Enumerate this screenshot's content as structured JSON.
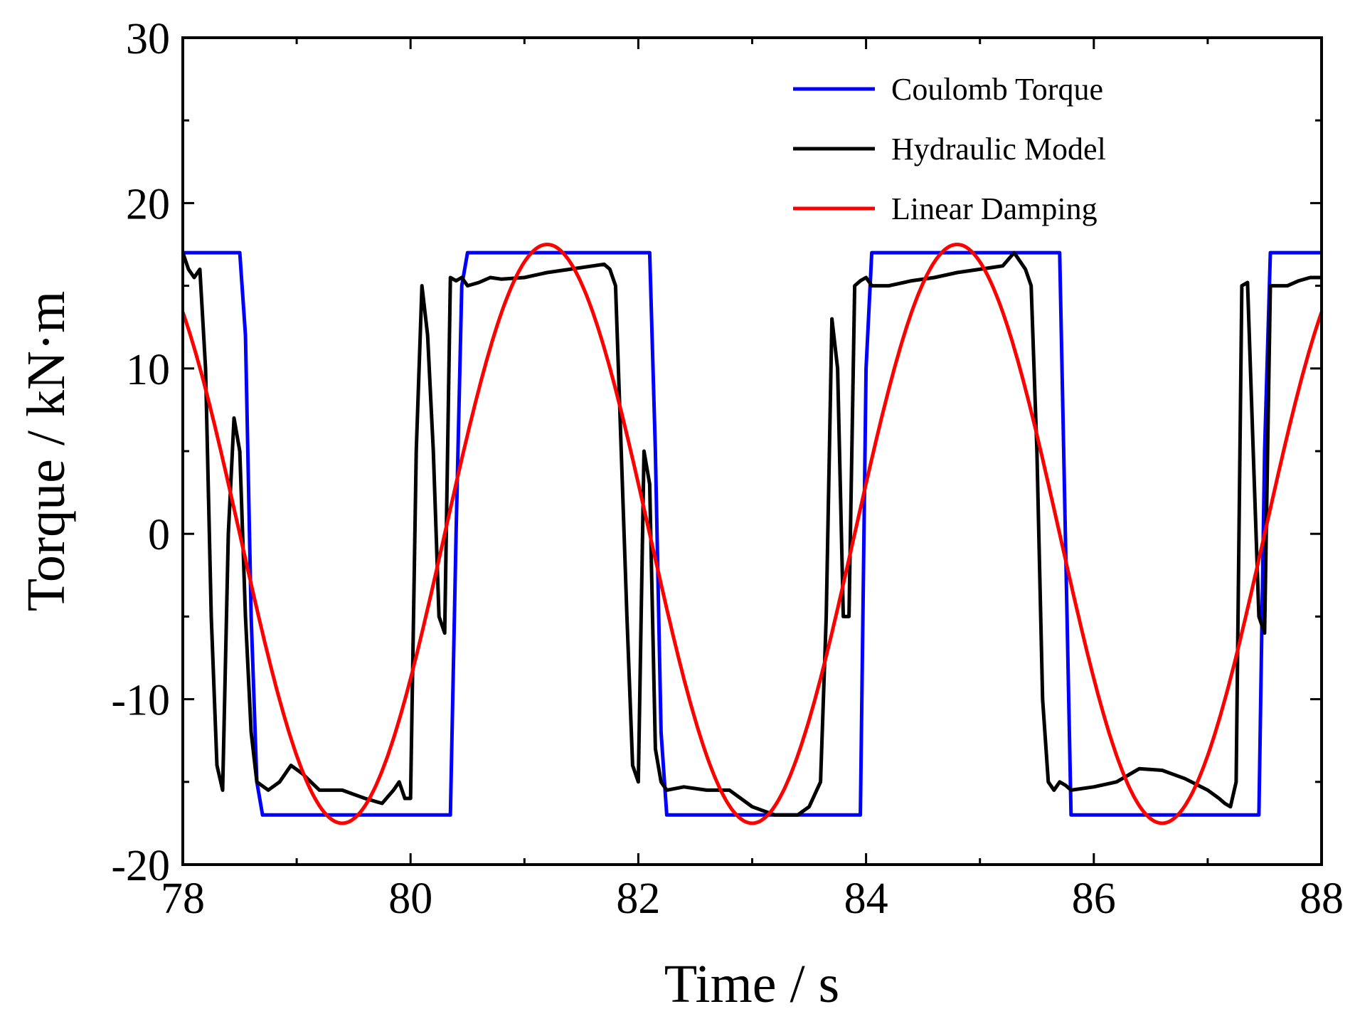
{
  "chart_data": {
    "type": "line",
    "title": "",
    "xlabel": "Time / s",
    "ylabel": "Torque / kN·m",
    "xlim": [
      78,
      88
    ],
    "ylim": [
      -20,
      30
    ],
    "x_ticks": [
      78,
      80,
      82,
      84,
      86,
      88
    ],
    "y_ticks": [
      -20,
      -10,
      0,
      10,
      20,
      30
    ],
    "x_tick_labels": [
      "78",
      "80",
      "82",
      "84",
      "86",
      "88"
    ],
    "y_tick_labels": [
      "-20",
      "-10",
      "0",
      "10",
      "20",
      "30"
    ],
    "grid": false,
    "legend_position": "top-right",
    "series": [
      {
        "name": "Coulomb Torque",
        "color": "#0000ff",
        "x": [
          78.0,
          78.5,
          78.55,
          78.6,
          78.65,
          78.7,
          80.35,
          80.4,
          80.45,
          80.5,
          82.1,
          82.15,
          82.2,
          82.25,
          83.95,
          84.0,
          84.05,
          85.7,
          85.75,
          85.8,
          87.45,
          87.5,
          87.55,
          88.0
        ],
        "y": [
          17,
          17,
          12,
          -5,
          -15,
          -17,
          -17,
          0,
          15,
          17,
          17,
          5,
          -12,
          -17,
          -17,
          10,
          17,
          17,
          0,
          -17,
          -17,
          5,
          17,
          17
        ]
      },
      {
        "name": "Hydraulic Model",
        "color": "#000000",
        "x": [
          78.0,
          78.05,
          78.1,
          78.15,
          78.2,
          78.25,
          78.3,
          78.35,
          78.4,
          78.45,
          78.5,
          78.55,
          78.6,
          78.65,
          78.75,
          78.85,
          78.95,
          79.05,
          79.2,
          79.4,
          79.6,
          79.75,
          79.85,
          79.9,
          79.95,
          80.0,
          80.05,
          80.1,
          80.15,
          80.2,
          80.25,
          80.3,
          80.35,
          80.4,
          80.45,
          80.5,
          80.6,
          80.7,
          80.8,
          81.0,
          81.2,
          81.4,
          81.6,
          81.7,
          81.75,
          81.8,
          81.85,
          81.9,
          81.95,
          82.0,
          82.05,
          82.1,
          82.15,
          82.2,
          82.25,
          82.4,
          82.6,
          82.8,
          83.0,
          83.2,
          83.4,
          83.5,
          83.6,
          83.65,
          83.7,
          83.75,
          83.8,
          83.85,
          83.9,
          83.95,
          84.0,
          84.05,
          84.2,
          84.4,
          84.6,
          84.8,
          85.0,
          85.2,
          85.3,
          85.35,
          85.4,
          85.45,
          85.5,
          85.55,
          85.6,
          85.65,
          85.7,
          85.75,
          85.8,
          86.0,
          86.2,
          86.4,
          86.6,
          86.8,
          87.0,
          87.1,
          87.15,
          87.2,
          87.25,
          87.3,
          87.35,
          87.4,
          87.45,
          87.5,
          87.55,
          87.6,
          87.7,
          87.8,
          87.9,
          88.0
        ],
        "y": [
          17,
          16,
          15.5,
          16,
          10,
          -5,
          -14,
          -15.5,
          0,
          7,
          5,
          -5,
          -12,
          -15,
          -15.5,
          -15,
          -14,
          -14.5,
          -15.5,
          -15.5,
          -16,
          -16.3,
          -15.5,
          -15,
          -16,
          -16,
          5,
          15,
          12,
          5,
          -5,
          -6,
          15.5,
          15.3,
          15.5,
          15,
          15.2,
          15.5,
          15.4,
          15.5,
          15.8,
          16,
          16.2,
          16.3,
          16,
          15,
          5,
          -5,
          -14,
          -15,
          5,
          3,
          -13,
          -15,
          -15.5,
          -15.3,
          -15.5,
          -15.5,
          -16.5,
          -17,
          -17,
          -16.5,
          -15,
          -5,
          13,
          10,
          -5,
          -5,
          15,
          15.3,
          15.5,
          15,
          15,
          15.3,
          15.5,
          15.8,
          16,
          16.2,
          17,
          16.5,
          16,
          15,
          5,
          -10,
          -15,
          -15.5,
          -15,
          -15.2,
          -15.5,
          -15.3,
          -15,
          -14.2,
          -14.3,
          -14.8,
          -15.5,
          -16,
          -16.3,
          -16.5,
          -15,
          15,
          15.2,
          5,
          -5,
          -6,
          15,
          15,
          15,
          15.3,
          15.5,
          15.5
        ]
      },
      {
        "name": "Linear Damping",
        "color": "#ff0000",
        "amplitude": 17.5,
        "period": 3.6,
        "peak_x": 81.2,
        "x": [
          78.0,
          78.45,
          78.9,
          79.35,
          79.8,
          80.25,
          80.7,
          81.15,
          81.6,
          82.05,
          82.5,
          82.95,
          83.4,
          83.85,
          84.3,
          84.75,
          85.2,
          85.65,
          86.1,
          86.55,
          87.0,
          87.45,
          87.9,
          88.0
        ],
        "y": [
          12.1,
          0.4,
          -12.4,
          -17.5,
          -12.4,
          0.0,
          12.4,
          17.5,
          12.4,
          0.0,
          -12.4,
          -17.5,
          -12.4,
          0.0,
          12.4,
          17.5,
          12.4,
          0.0,
          -12.4,
          -17.5,
          -12.4,
          0.0,
          12.4,
          15.3
        ]
      }
    ]
  }
}
